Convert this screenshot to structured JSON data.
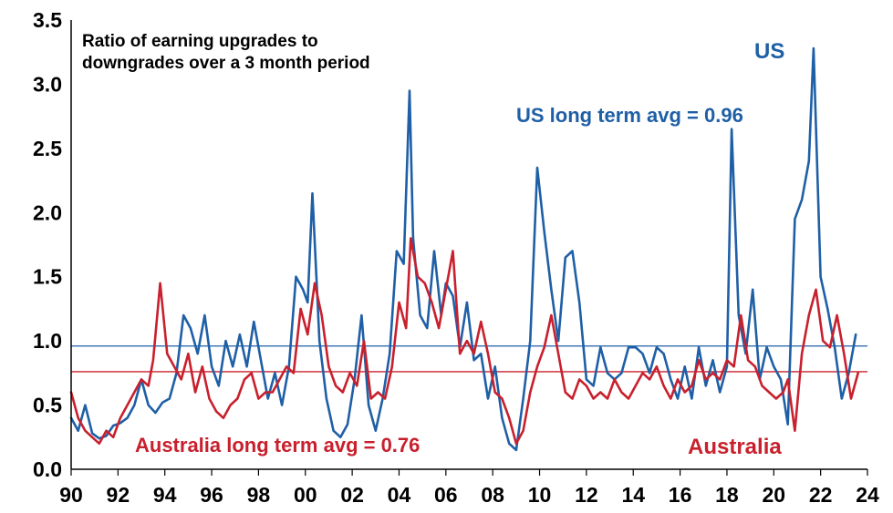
{
  "chart_data": {
    "type": "line",
    "title_lines": [
      "Ratio of earning upgrades to",
      "downgrades over a 3 month period"
    ],
    "xlabel": "",
    "ylabel": "",
    "xlim": [
      1990,
      2024
    ],
    "ylim": [
      0,
      3.5
    ],
    "x_ticks": [
      "90",
      "92",
      "94",
      "96",
      "98",
      "00",
      "02",
      "04",
      "06",
      "08",
      "10",
      "12",
      "14",
      "16",
      "18",
      "20",
      "22",
      "24"
    ],
    "y_ticks": [
      "0.0",
      "0.5",
      "1.0",
      "1.5",
      "2.0",
      "2.5",
      "3.0",
      "3.5"
    ],
    "grid": false,
    "series": [
      {
        "name": "US",
        "color": "#1f5fa6",
        "x": [
          1990.0,
          1990.3,
          1990.6,
          1990.9,
          1991.2,
          1991.5,
          1991.8,
          1992.1,
          1992.4,
          1992.7,
          1993.0,
          1993.3,
          1993.6,
          1993.9,
          1994.2,
          1994.5,
          1994.8,
          1995.1,
          1995.4,
          1995.7,
          1996.0,
          1996.3,
          1996.6,
          1996.9,
          1997.2,
          1997.5,
          1997.8,
          1998.1,
          1998.4,
          1998.7,
          1999.0,
          1999.3,
          1999.6,
          1999.9,
          2000.1,
          2000.3,
          2000.6,
          2000.9,
          2001.2,
          2001.5,
          2001.8,
          2002.1,
          2002.4,
          2002.7,
          2003.0,
          2003.3,
          2003.6,
          2003.9,
          2004.2,
          2004.45,
          2004.6,
          2004.9,
          2005.2,
          2005.5,
          2005.8,
          2006.0,
          2006.3,
          2006.6,
          2006.9,
          2007.2,
          2007.5,
          2007.8,
          2008.1,
          2008.4,
          2008.7,
          2009.0,
          2009.3,
          2009.6,
          2009.9,
          2010.2,
          2010.5,
          2010.8,
          2011.1,
          2011.4,
          2011.7,
          2012.0,
          2012.3,
          2012.6,
          2012.9,
          2013.2,
          2013.5,
          2013.8,
          2014.1,
          2014.4,
          2014.7,
          2015.0,
          2015.3,
          2015.6,
          2015.9,
          2016.2,
          2016.5,
          2016.8,
          2017.1,
          2017.4,
          2017.7,
          2018.0,
          2018.2,
          2018.5,
          2018.8,
          2019.1,
          2019.4,
          2019.7,
          2020.0,
          2020.3,
          2020.6,
          2020.9,
          2021.2,
          2021.5,
          2021.7,
          2022.0,
          2022.3,
          2022.6,
          2022.9,
          2023.2,
          2023.5
        ],
        "values": [
          0.4,
          0.3,
          0.5,
          0.28,
          0.24,
          0.26,
          0.34,
          0.36,
          0.4,
          0.5,
          0.7,
          0.5,
          0.44,
          0.52,
          0.55,
          0.75,
          1.2,
          1.1,
          0.9,
          1.2,
          0.8,
          0.65,
          1.0,
          0.8,
          1.05,
          0.8,
          1.15,
          0.85,
          0.55,
          0.75,
          0.5,
          0.8,
          1.5,
          1.4,
          1.3,
          2.15,
          1.0,
          0.55,
          0.3,
          0.25,
          0.35,
          0.7,
          1.2,
          0.5,
          0.3,
          0.55,
          0.9,
          1.7,
          1.6,
          2.95,
          1.8,
          1.2,
          1.1,
          1.7,
          1.2,
          1.45,
          1.35,
          0.95,
          1.3,
          0.85,
          0.9,
          0.55,
          0.8,
          0.4,
          0.2,
          0.15,
          0.55,
          1.0,
          2.35,
          1.85,
          1.4,
          1.0,
          1.65,
          1.7,
          1.3,
          0.7,
          0.65,
          0.95,
          0.75,
          0.7,
          0.75,
          0.95,
          0.95,
          0.9,
          0.75,
          0.95,
          0.9,
          0.7,
          0.55,
          0.8,
          0.55,
          0.95,
          0.65,
          0.85,
          0.6,
          0.8,
          2.65,
          1.2,
          0.9,
          1.4,
          0.7,
          0.95,
          0.8,
          0.7,
          0.35,
          1.95,
          2.1,
          2.4,
          3.28,
          1.5,
          1.25,
          0.95,
          0.55,
          0.75,
          1.05
        ],
        "long_term_avg": 0.96,
        "avg_label": "US long term avg = 0.96",
        "end_label": "US"
      },
      {
        "name": "Australia",
        "color": "#c8202d",
        "x": [
          1990.0,
          1990.3,
          1990.6,
          1990.9,
          1991.2,
          1991.5,
          1991.8,
          1992.1,
          1992.4,
          1992.7,
          1993.0,
          1993.3,
          1993.5,
          1993.8,
          1994.1,
          1994.4,
          1994.7,
          1995.0,
          1995.3,
          1995.6,
          1995.9,
          1996.2,
          1996.5,
          1996.8,
          1997.1,
          1997.4,
          1997.7,
          1998.0,
          1998.3,
          1998.6,
          1998.9,
          1999.2,
          1999.5,
          1999.8,
          2000.1,
          2000.4,
          2000.7,
          2001.0,
          2001.3,
          2001.6,
          2001.9,
          2002.2,
          2002.5,
          2002.8,
          2003.1,
          2003.4,
          2003.7,
          2004.0,
          2004.3,
          2004.5,
          2004.8,
          2005.1,
          2005.4,
          2005.7,
          2006.0,
          2006.3,
          2006.6,
          2006.9,
          2007.2,
          2007.5,
          2007.8,
          2008.1,
          2008.4,
          2008.7,
          2009.0,
          2009.3,
          2009.6,
          2009.9,
          2010.2,
          2010.5,
          2010.8,
          2011.1,
          2011.4,
          2011.7,
          2012.0,
          2012.3,
          2012.6,
          2012.9,
          2013.2,
          2013.5,
          2013.8,
          2014.1,
          2014.4,
          2014.7,
          2015.0,
          2015.3,
          2015.6,
          2015.9,
          2016.2,
          2016.5,
          2016.8,
          2017.1,
          2017.4,
          2017.7,
          2018.0,
          2018.3,
          2018.6,
          2018.9,
          2019.2,
          2019.5,
          2019.8,
          2020.1,
          2020.4,
          2020.6,
          2020.9,
          2021.2,
          2021.5,
          2021.8,
          2022.1,
          2022.4,
          2022.7,
          2023.0,
          2023.3,
          2023.6
        ],
        "values": [
          0.6,
          0.4,
          0.3,
          0.25,
          0.2,
          0.3,
          0.25,
          0.4,
          0.5,
          0.6,
          0.7,
          0.65,
          0.85,
          1.45,
          0.9,
          0.8,
          0.7,
          0.9,
          0.6,
          0.8,
          0.55,
          0.45,
          0.4,
          0.5,
          0.55,
          0.7,
          0.75,
          0.55,
          0.6,
          0.6,
          0.7,
          0.8,
          0.75,
          1.25,
          1.05,
          1.45,
          1.2,
          0.8,
          0.65,
          0.6,
          0.75,
          0.65,
          1.0,
          0.55,
          0.6,
          0.55,
          0.8,
          1.3,
          1.1,
          1.8,
          1.5,
          1.45,
          1.3,
          1.1,
          1.4,
          1.7,
          0.9,
          1.0,
          0.9,
          1.15,
          0.9,
          0.6,
          0.55,
          0.4,
          0.2,
          0.3,
          0.6,
          0.8,
          0.95,
          1.2,
          0.9,
          0.6,
          0.55,
          0.7,
          0.65,
          0.55,
          0.6,
          0.55,
          0.7,
          0.6,
          0.55,
          0.65,
          0.75,
          0.7,
          0.8,
          0.65,
          0.55,
          0.7,
          0.6,
          0.65,
          0.85,
          0.7,
          0.75,
          0.7,
          0.85,
          0.8,
          1.2,
          0.85,
          0.8,
          0.65,
          0.6,
          0.55,
          0.6,
          0.7,
          0.3,
          0.9,
          1.2,
          1.4,
          1.0,
          0.95,
          1.2,
          0.9,
          0.55,
          0.75
        ],
        "long_term_avg": 0.76,
        "avg_label": "Australia long term avg = 0.76",
        "end_label": "Australia"
      }
    ]
  }
}
